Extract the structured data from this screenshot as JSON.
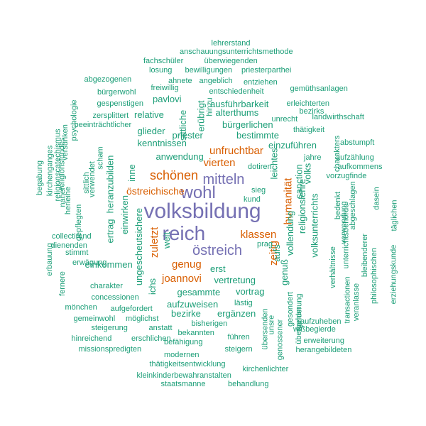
{
  "palette": {
    "large": "#7570b3",
    "medium": "#d95f02",
    "small": "#1b9e77"
  },
  "words": [
    {
      "text": "volksbildung",
      "tier": "large"
    },
    {
      "text": "reich",
      "tier": "large"
    },
    {
      "text": "wohl",
      "tier": "large"
    },
    {
      "text": "mitteln",
      "tier": "large"
    },
    {
      "text": "östreich",
      "tier": "large"
    },
    {
      "text": "schönen",
      "tier": "medium"
    },
    {
      "text": "unfruchtbar",
      "tier": "medium"
    },
    {
      "text": "vierten",
      "tier": "medium"
    },
    {
      "text": "östreichische",
      "tier": "medium"
    },
    {
      "text": "klassen",
      "tier": "medium"
    },
    {
      "text": "zuletzt",
      "tier": "medium"
    },
    {
      "text": "genug",
      "tier": "medium"
    },
    {
      "text": "joannovi",
      "tier": "medium"
    },
    {
      "text": "zeitig",
      "tier": "medium"
    },
    {
      "text": "humanität",
      "tier": "medium"
    },
    {
      "text": "lehrerstand",
      "tier": "small"
    },
    {
      "text": "anschauungsunterrichtsmethode",
      "tier": "small"
    },
    {
      "text": "fachschüler",
      "tier": "small"
    },
    {
      "text": "überwiegenden",
      "tier": "small"
    },
    {
      "text": "losung",
      "tier": "small"
    },
    {
      "text": "bewilligungen",
      "tier": "small"
    },
    {
      "text": "priesterparthei",
      "tier": "small"
    },
    {
      "text": "abgezogenen",
      "tier": "small"
    },
    {
      "text": "ahnete",
      "tier": "small"
    },
    {
      "text": "angeblich",
      "tier": "small"
    },
    {
      "text": "entziehen",
      "tier": "small"
    },
    {
      "text": "freiwillig",
      "tier": "small"
    },
    {
      "text": "bürgerwohl",
      "tier": "small"
    },
    {
      "text": "entschiedenheit",
      "tier": "small"
    },
    {
      "text": "gemüthsanlagen",
      "tier": "small"
    },
    {
      "text": "gespenstigen",
      "tier": "small"
    },
    {
      "text": "pavlovi",
      "tier": "small"
    },
    {
      "text": "ausführbarkeit",
      "tier": "small"
    },
    {
      "text": "erleichterten",
      "tier": "small"
    },
    {
      "text": "bezirks",
      "tier": "small"
    },
    {
      "text": "zersplittert",
      "tier": "small"
    },
    {
      "text": "relative",
      "tier": "small"
    },
    {
      "text": "alterthums",
      "tier": "small"
    },
    {
      "text": "unrecht",
      "tier": "small"
    },
    {
      "text": "landwirthschaft",
      "tier": "small"
    },
    {
      "text": "beeinträchtlicher",
      "tier": "small"
    },
    {
      "text": "thätigkeit",
      "tier": "small"
    },
    {
      "text": "glieder",
      "tier": "small"
    },
    {
      "text": "priester",
      "tier": "small"
    },
    {
      "text": "bürgerlichen",
      "tier": "small"
    },
    {
      "text": "bestimmte",
      "tier": "small"
    },
    {
      "text": "abstumpft",
      "tier": "small"
    },
    {
      "text": "kenntnissen",
      "tier": "small"
    },
    {
      "text": "einzuführen",
      "tier": "small"
    },
    {
      "text": "anwendung",
      "tier": "small"
    },
    {
      "text": "jahre",
      "tier": "small"
    },
    {
      "text": "aufzählung",
      "tier": "small"
    },
    {
      "text": "dotiren",
      "tier": "small"
    },
    {
      "text": "aufkommens",
      "tier": "small"
    },
    {
      "text": "vorzugfinde",
      "tier": "small"
    },
    {
      "text": "sieg",
      "tier": "small"
    },
    {
      "text": "kund",
      "tier": "small"
    },
    {
      "text": "prag",
      "tier": "small"
    },
    {
      "text": "einkommen",
      "tier": "small"
    },
    {
      "text": "weit",
      "tier": "small"
    },
    {
      "text": "erst",
      "tier": "small"
    },
    {
      "text": "vertretung",
      "tier": "small"
    },
    {
      "text": "vortrag",
      "tier": "small"
    },
    {
      "text": "gesammte",
      "tier": "small"
    },
    {
      "text": "aufzuweisen",
      "tier": "small"
    },
    {
      "text": "bezirke",
      "tier": "small"
    },
    {
      "text": "ergänzen",
      "tier": "small"
    },
    {
      "text": "lästig",
      "tier": "small"
    },
    {
      "text": "collectirend",
      "tier": "small"
    },
    {
      "text": "dienenden",
      "tier": "small"
    },
    {
      "text": "stimmt",
      "tier": "small"
    },
    {
      "text": "erwägung",
      "tier": "small"
    },
    {
      "text": "charakter",
      "tier": "small"
    },
    {
      "text": "concessionen",
      "tier": "small"
    },
    {
      "text": "mönchen",
      "tier": "small"
    },
    {
      "text": "aufgefordert",
      "tier": "small"
    },
    {
      "text": "gemeinwohl",
      "tier": "small"
    },
    {
      "text": "möglichst",
      "tier": "small"
    },
    {
      "text": "bisherigen",
      "tier": "small"
    },
    {
      "text": "steigerung",
      "tier": "small"
    },
    {
      "text": "anstatt",
      "tier": "small"
    },
    {
      "text": "bekannten",
      "tier": "small"
    },
    {
      "text": "hinreichend",
      "tier": "small"
    },
    {
      "text": "erschlichen",
      "tier": "small"
    },
    {
      "text": "führen",
      "tier": "small"
    },
    {
      "text": "befähigung",
      "tier": "small"
    },
    {
      "text": "missionspredigten",
      "tier": "small"
    },
    {
      "text": "steigern",
      "tier": "small"
    },
    {
      "text": "modernen",
      "tier": "small"
    },
    {
      "text": "thätigkeitsentwicklung",
      "tier": "small"
    },
    {
      "text": "kirchenlichter",
      "tier": "small"
    },
    {
      "text": "kleinkinderbewahranstalten",
      "tier": "small"
    },
    {
      "text": "staatsmanne",
      "tier": "small"
    },
    {
      "text": "behandlung",
      "tier": "small"
    },
    {
      "text": "aufzuheben",
      "tier": "small"
    },
    {
      "text": "wißbegierde",
      "tier": "small"
    },
    {
      "text": "erweiterung",
      "tier": "small"
    },
    {
      "text": "herangebildeten",
      "tier": "small"
    },
    {
      "text": "religionslehre",
      "tier": "small"
    },
    {
      "text": "volksunterrichts",
      "tier": "small"
    },
    {
      "text": "vollendung",
      "tier": "small"
    },
    {
      "text": "genuß",
      "tier": "small"
    },
    {
      "text": "aufs",
      "tier": "small"
    },
    {
      "text": "sanction",
      "tier": "small"
    },
    {
      "text": "volks",
      "tier": "small"
    },
    {
      "text": "leichtes",
      "tier": "small"
    },
    {
      "text": "sittliche",
      "tier": "small"
    },
    {
      "text": "erübrigt",
      "tier": "small"
    },
    {
      "text": "hinzu",
      "tier": "small"
    },
    {
      "text": "einwirken",
      "tier": "small"
    },
    {
      "text": "ertrag",
      "tier": "small"
    },
    {
      "text": "heranzubilden",
      "tier": "small"
    },
    {
      "text": "inne",
      "tier": "small"
    },
    {
      "text": "ungescheutsichere",
      "tier": "small"
    },
    {
      "text": "ichs",
      "tier": "small"
    },
    {
      "text": "psychologie",
      "tier": "small"
    },
    {
      "text": "religionscatechismus",
      "tier": "small"
    },
    {
      "text": "kirchenganges",
      "tier": "small"
    },
    {
      "text": "religionsfondes",
      "tier": "small"
    },
    {
      "text": "begabung",
      "tier": "small"
    },
    {
      "text": "naher",
      "tier": "small"
    },
    {
      "text": "herleihe",
      "tier": "small"
    },
    {
      "text": "gepflegten",
      "tier": "small"
    },
    {
      "text": "sittlich",
      "tier": "small"
    },
    {
      "text": "verwendet",
      "tier": "small"
    },
    {
      "text": "scham",
      "tier": "small"
    },
    {
      "text": "versunken",
      "tier": "small"
    },
    {
      "text": "erbauung",
      "tier": "small"
    },
    {
      "text": "fernere",
      "tier": "small"
    },
    {
      "text": "charakters",
      "tier": "small"
    },
    {
      "text": "bedenkt",
      "tier": "small"
    },
    {
      "text": "abgeschlagen",
      "tier": "small"
    },
    {
      "text": "dasein",
      "tier": "small"
    },
    {
      "text": "verwendung",
      "tier": "small"
    },
    {
      "text": "unterrichtsbehörde",
      "tier": "small"
    },
    {
      "text": "verhältnisse",
      "tier": "small"
    },
    {
      "text": "transactionen",
      "tier": "small"
    },
    {
      "text": "veranlasse",
      "tier": "small"
    },
    {
      "text": "bleibenderer",
      "tier": "small"
    },
    {
      "text": "philosophischen",
      "tier": "small"
    },
    {
      "text": "erziehungskunde",
      "tier": "small"
    },
    {
      "text": "täglichen",
      "tier": "small"
    },
    {
      "text": "sonderung",
      "tier": "small"
    },
    {
      "text": "übergehen",
      "tier": "small"
    },
    {
      "text": "gesondert",
      "tier": "small"
    },
    {
      "text": "genossener",
      "tier": "small"
    },
    {
      "text": "unsre",
      "tier": "small"
    },
    {
      "text": "übersenden",
      "tier": "small"
    }
  ]
}
